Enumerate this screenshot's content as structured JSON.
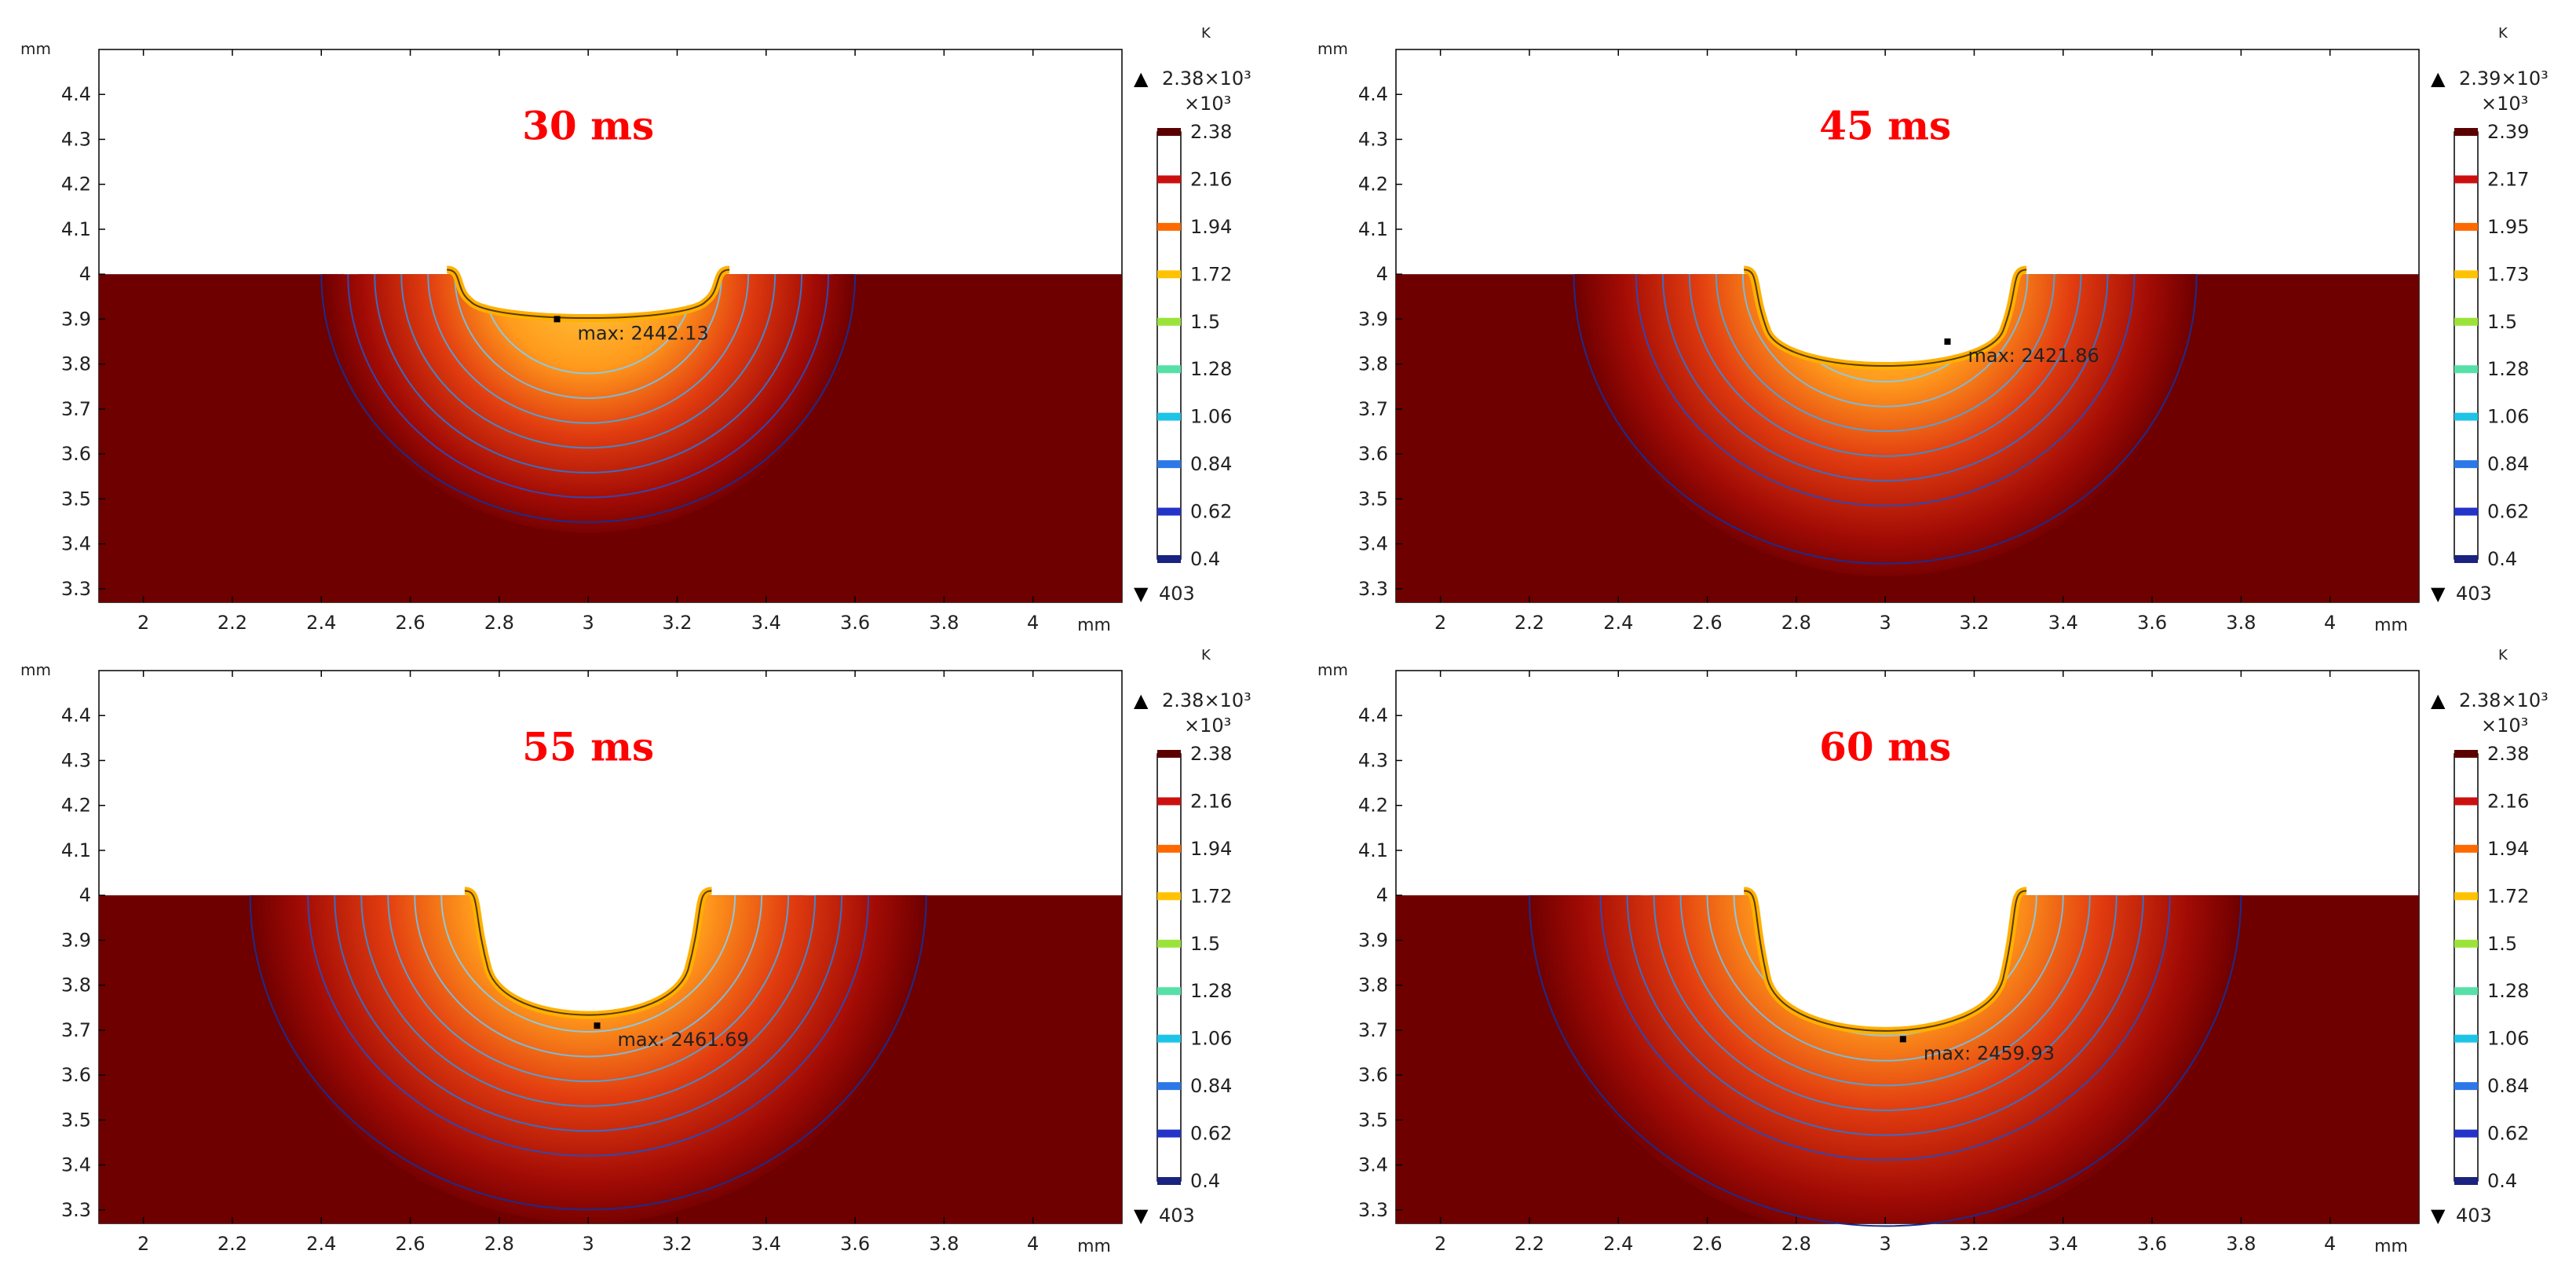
{
  "figure": {
    "description_hidden": false
  },
  "chart_data": [
    {
      "type": "contour",
      "title": "30 ms",
      "xlabel": "mm",
      "ylabel": "mm",
      "xlim": [
        1.9,
        4.2
      ],
      "ylim": [
        3.27,
        4.5
      ],
      "x_ticks": [
        "2",
        "2.2",
        "2.4",
        "2.6",
        "2.8",
        "3",
        "3.2",
        "3.4",
        "3.6",
        "3.8",
        "4"
      ],
      "y_ticks": [
        "3.3",
        "3.4",
        "3.5",
        "3.6",
        "3.7",
        "3.8",
        "3.9",
        "4",
        "4.1",
        "4.2",
        "4.3",
        "4.4"
      ],
      "surface_y": 4.0,
      "pool_center_x": 3.0,
      "pool_half_width": 0.3,
      "pool_bottom_y": 3.89,
      "rim_height": 0.01,
      "isotherm_extents": [
        0.24,
        0.3,
        0.36,
        0.42,
        0.48,
        0.54,
        0.6
      ],
      "max_point": [
        2.93,
        3.9
      ],
      "max_label": "max: 2442.13",
      "colorbar": {
        "unit": "K",
        "max_label": "2.38×10³",
        "scale_label": "×10³",
        "ticks": [
          "2.38",
          "2.16",
          "1.94",
          "1.72",
          "1.5",
          "1.28",
          "1.06",
          "0.84",
          "0.62",
          "0.4"
        ],
        "min_label": "403"
      }
    },
    {
      "type": "contour",
      "title": "45 ms",
      "xlabel": "mm",
      "ylabel": "mm",
      "xlim": [
        1.9,
        4.2
      ],
      "ylim": [
        3.27,
        4.5
      ],
      "x_ticks": [
        "2",
        "2.2",
        "2.4",
        "2.6",
        "2.8",
        "3",
        "3.2",
        "3.4",
        "3.6",
        "3.8",
        "4"
      ],
      "y_ticks": [
        "3.3",
        "3.4",
        "3.5",
        "3.6",
        "3.7",
        "3.8",
        "3.9",
        "4",
        "4.1",
        "4.2",
        "4.3",
        "4.4"
      ],
      "surface_y": 4.0,
      "pool_center_x": 3.0,
      "pool_half_width": 0.3,
      "pool_bottom_y": 3.77,
      "rim_height": 0.01,
      "isotherm_extents": [
        0.26,
        0.32,
        0.38,
        0.44,
        0.5,
        0.56,
        0.7
      ],
      "max_point": [
        3.14,
        3.85
      ],
      "max_label": "max: 2421.86",
      "colorbar": {
        "unit": "K",
        "max_label": "2.39×10³",
        "scale_label": "×10³",
        "ticks": [
          "2.39",
          "2.17",
          "1.95",
          "1.73",
          "1.5",
          "1.28",
          "1.06",
          "0.84",
          "0.62",
          "0.4"
        ],
        "min_label": "403"
      }
    },
    {
      "type": "contour",
      "title": "55 ms",
      "xlabel": "mm",
      "ylabel": "mm",
      "xlim": [
        1.9,
        4.2
      ],
      "ylim": [
        3.27,
        4.5
      ],
      "x_ticks": [
        "2",
        "2.2",
        "2.4",
        "2.6",
        "2.8",
        "3",
        "3.2",
        "3.4",
        "3.6",
        "3.8",
        "4"
      ],
      "y_ticks": [
        "3.3",
        "3.4",
        "3.5",
        "3.6",
        "3.7",
        "3.8",
        "3.9",
        "4",
        "4.1",
        "4.2",
        "4.3",
        "4.4"
      ],
      "surface_y": 4.0,
      "pool_center_x": 3.0,
      "pool_half_width": 0.26,
      "pool_bottom_y": 3.7,
      "rim_height": 0.01,
      "isotherm_extents": [
        0.33,
        0.39,
        0.45,
        0.51,
        0.57,
        0.63,
        0.76
      ],
      "max_point": [
        3.02,
        3.71
      ],
      "max_label": "max: 2461.69",
      "colorbar": {
        "unit": "K",
        "max_label": "2.38×10³",
        "scale_label": "×10³",
        "ticks": [
          "2.38",
          "2.16",
          "1.94",
          "1.72",
          "1.5",
          "1.28",
          "1.06",
          "0.84",
          "0.62",
          "0.4"
        ],
        "min_label": "403"
      }
    },
    {
      "type": "contour",
      "title": "60 ms",
      "xlabel": "mm",
      "ylabel": "mm",
      "xlim": [
        1.9,
        4.2
      ],
      "ylim": [
        3.27,
        4.5
      ],
      "x_ticks": [
        "2",
        "2.2",
        "2.4",
        "2.6",
        "2.8",
        "3",
        "3.2",
        "3.4",
        "3.6",
        "3.8",
        "4"
      ],
      "y_ticks": [
        "3.3",
        "3.4",
        "3.5",
        "3.6",
        "3.7",
        "3.8",
        "3.9",
        "4",
        "4.1",
        "4.2",
        "4.3",
        "4.4"
      ],
      "surface_y": 4.0,
      "pool_center_x": 3.0,
      "pool_half_width": 0.3,
      "pool_bottom_y": 3.66,
      "rim_height": 0.01,
      "isotherm_extents": [
        0.34,
        0.4,
        0.46,
        0.52,
        0.58,
        0.64,
        0.8
      ],
      "max_point": [
        3.04,
        3.68
      ],
      "max_label": "max: 2459.93",
      "colorbar": {
        "unit": "K",
        "max_label": "2.38×10³",
        "scale_label": "×10³",
        "ticks": [
          "2.38",
          "2.16",
          "1.94",
          "1.72",
          "1.5",
          "1.28",
          "1.06",
          "0.84",
          "0.62",
          "0.4"
        ],
        "min_label": "403"
      }
    }
  ],
  "colors": {
    "base": "#6e0000",
    "hot_core": "#ffb000",
    "label_red": "#ff0000",
    "iso_light": "#8ec8de",
    "iso_dark": "#1d2b8d"
  }
}
